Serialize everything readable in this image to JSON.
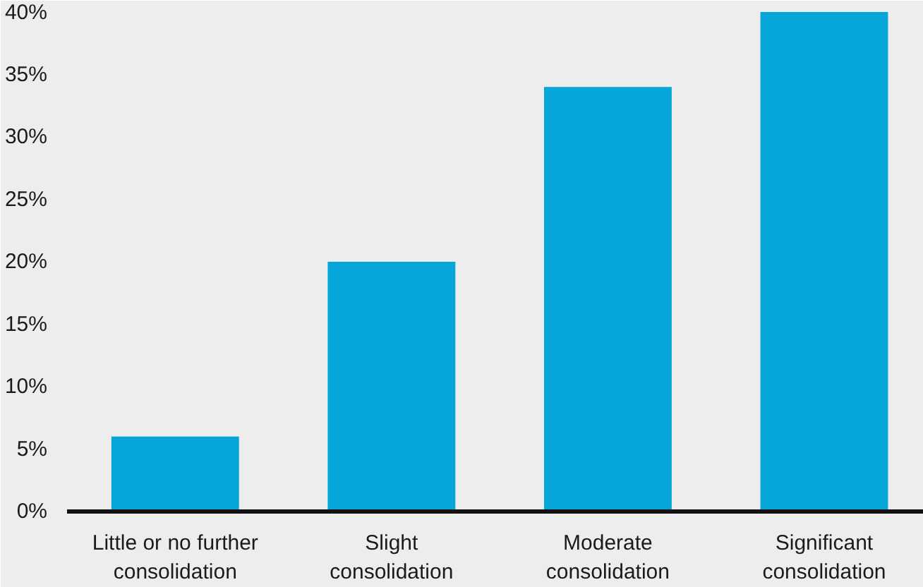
{
  "chart_data": {
    "type": "bar",
    "categories": [
      "Little or no further consolidation",
      "Slight consolidation",
      "Moderate consolidation",
      "Significant consolidation"
    ],
    "values": [
      6,
      20,
      34,
      40
    ],
    "color": "#06a6da",
    "ylim": [
      0,
      40
    ],
    "yticks": [
      {
        "value": 0,
        "label": "0%"
      },
      {
        "value": 5,
        "label": "5%"
      },
      {
        "value": 10,
        "label": "10%"
      },
      {
        "value": 15,
        "label": "15%"
      },
      {
        "value": 20,
        "label": "20%"
      },
      {
        "value": 25,
        "label": "25%"
      },
      {
        "value": 30,
        "label": "30%"
      },
      {
        "value": 35,
        "label": "35%"
      },
      {
        "value": 40,
        "label": "40%"
      }
    ]
  }
}
